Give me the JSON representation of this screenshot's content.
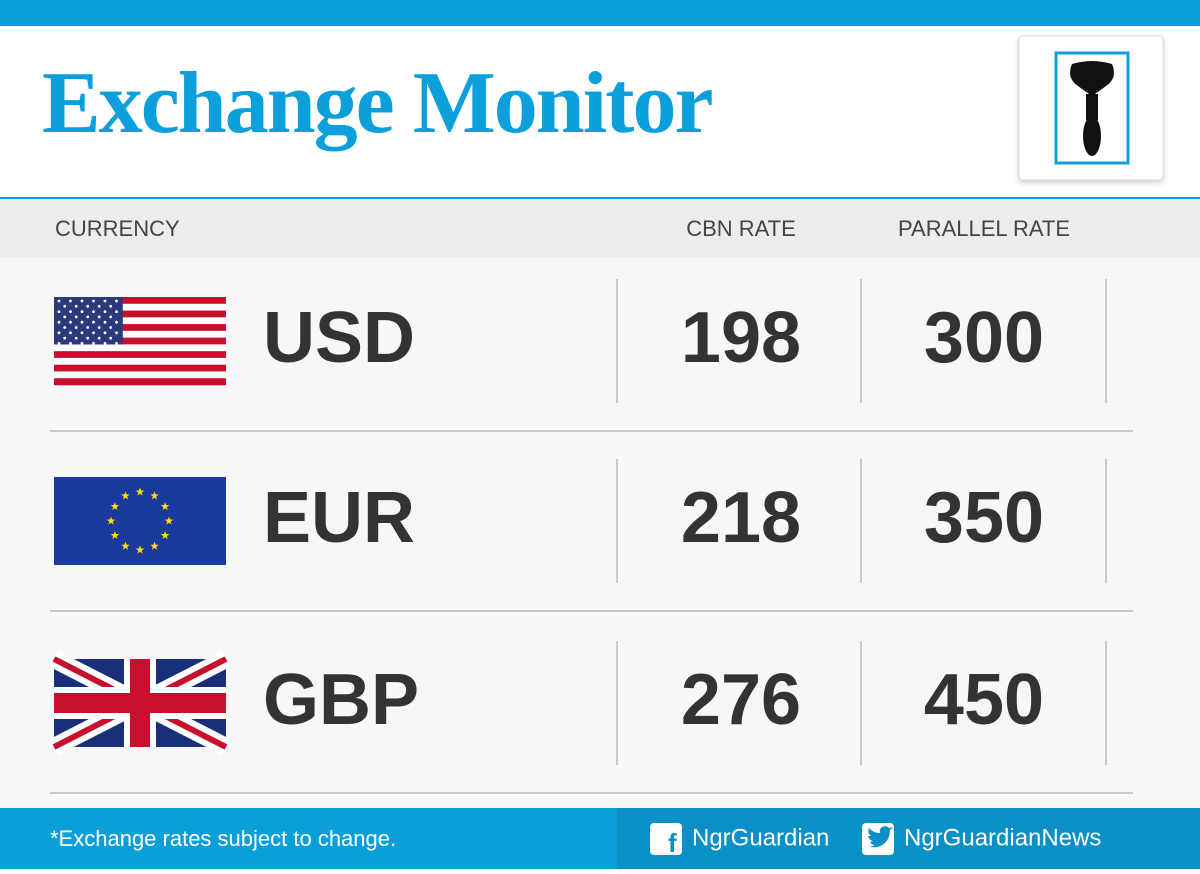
{
  "header": {
    "title": "Exchange Monitor"
  },
  "table": {
    "columns": [
      "CURRENCY",
      "CBN RATE",
      "PARALLEL RATE"
    ],
    "rows": [
      [
        "USD",
        "198",
        "300"
      ],
      [
        "EUR",
        "218",
        "350"
      ],
      [
        "GBP",
        "276",
        "450"
      ]
    ]
  },
  "footer": {
    "note": "*Exchange rates subject to change.",
    "facebook": "NgrGuardian",
    "twitter": "NgrGuardianNews"
  }
}
